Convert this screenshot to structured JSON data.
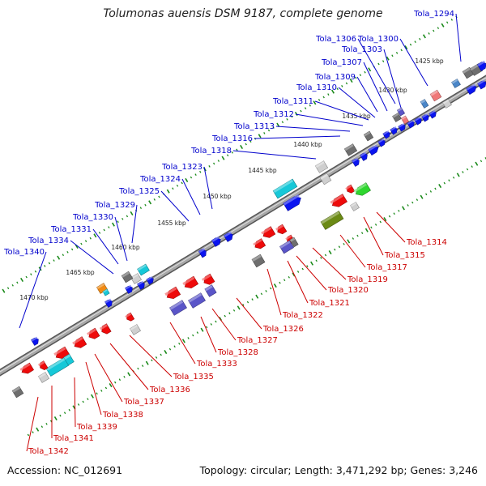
{
  "title": "Tolumonas auensis DSM 9187, complete genome",
  "footer": {
    "accession": "Accession: NC_012691",
    "summary": "Topology: circular; Length: 3,471,292 bp; Genes: 3,246"
  },
  "colors": {
    "backbone": "#8a8a8a",
    "forward_label": "#0000cc",
    "reverse_label": "#cc0000",
    "ticks": "#1a8a1a",
    "blue": "#0a14f0",
    "red": "#ee0a0a",
    "gray": "#6e6e6e",
    "cyan": "#16c8d8",
    "purple": "#5a55c8",
    "olive": "#6b8a14",
    "green": "#2ed62e",
    "pink": "#f07878",
    "steelblue": "#4a86c8",
    "orange": "#f08a14",
    "lightgray": "#cfcfcf"
  },
  "scale_labels": [
    "1425 kbp",
    "1430 kbp",
    "1435 kbp",
    "1440 kbp",
    "1445 kbp",
    "1450 kbp",
    "1455 kbp",
    "1460 kbp",
    "1465 kbp",
    "1470 kbp"
  ],
  "forward_labels": [
    "Tola_1294",
    "Tola_1300",
    "Tola_1303",
    "Tola_1306",
    "Tola_1307",
    "Tola_1309",
    "Tola_1310",
    "Tola_1311",
    "Tola_1312",
    "Tola_1313",
    "Tola_1316",
    "Tola_1318",
    "Tola_1323",
    "Tola_1324",
    "Tola_1325",
    "Tola_1329",
    "Tola_1330",
    "Tola_1331",
    "Tola_1334",
    "Tola_1340"
  ],
  "reverse_labels": [
    "Tola_1314",
    "Tola_1315",
    "Tola_1317",
    "Tola_1319",
    "Tola_1320",
    "Tola_1321",
    "Tola_1322",
    "Tola_1326",
    "Tola_1327",
    "Tola_1328",
    "Tola_1333",
    "Tola_1335",
    "Tola_1336",
    "Tola_1337",
    "Tola_1338",
    "Tola_1339",
    "Tola_1341",
    "Tola_1342"
  ]
}
